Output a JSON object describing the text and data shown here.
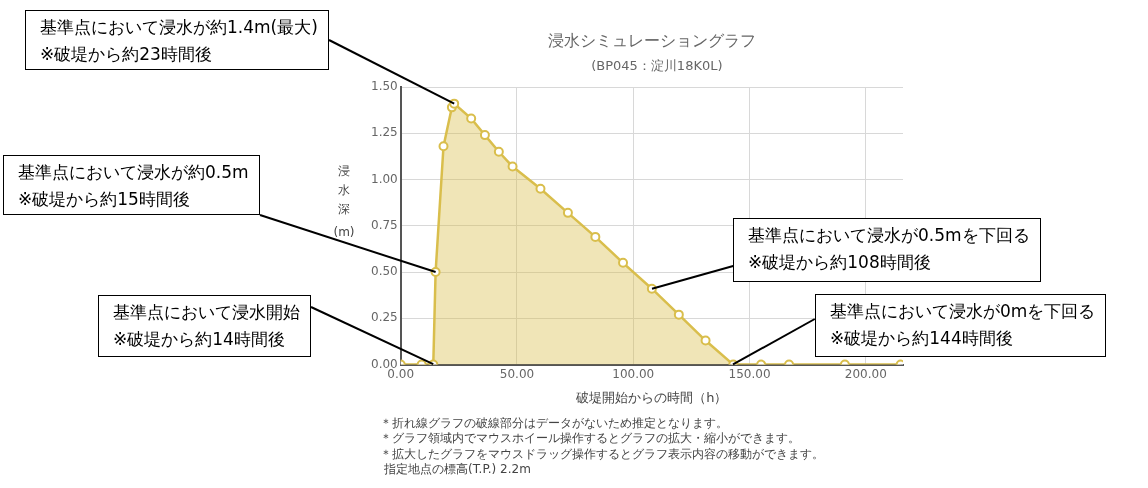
{
  "chart_data": {
    "type": "area",
    "title": "浸水シミュレーショングラフ",
    "subtitle": "(BP045：淀川18K0L)",
    "xlabel": "破堤開始からの時間（h）",
    "ylabel": "浸水深(m)",
    "x": [
      0,
      9,
      14,
      15,
      18.4,
      22,
      23,
      30.3,
      36.2,
      42.2,
      48.1,
      60.1,
      71.9,
      83.7,
      95.6,
      108,
      119.6,
      131.1,
      143,
      155,
      167,
      191,
      215
    ],
    "series": [
      {
        "color": "#d9be4c",
        "values": [
          0,
          0,
          0,
          0.5,
          1.18,
          1.39,
          1.41,
          1.33,
          1.24,
          1.15,
          1.07,
          0.95,
          0.82,
          0.69,
          0.55,
          0.41,
          0.27,
          0.13,
          0,
          0,
          0,
          0,
          0
        ]
      }
    ],
    "xlim": [
      0,
      216
    ],
    "xticks": [
      {
        "value": 0,
        "label": "0.00"
      },
      {
        "value": 50,
        "label": "50.00"
      },
      {
        "value": 100,
        "label": "100.00"
      },
      {
        "value": 150,
        "label": "150.00"
      },
      {
        "value": 200,
        "label": "200.00"
      }
    ],
    "ylim": [
      0,
      1.5
    ],
    "yticks": [
      {
        "value": 0,
        "label": "0.00"
      },
      {
        "value": 0.25,
        "label": "0.25"
      },
      {
        "value": 0.5,
        "label": "0.50"
      },
      {
        "value": 0.75,
        "label": "0.75"
      },
      {
        "value": 1,
        "label": "1.00"
      },
      {
        "value": 1.25,
        "label": "1.25"
      },
      {
        "value": 1.5,
        "label": "1.50"
      }
    ],
    "grid": true,
    "legend": false,
    "marker": "circle",
    "annotations": [
      {
        "text": "基準点において浸水が約1.4m(最大)\n※破堤から約23時間後",
        "x": 23,
        "y": 1.41
      },
      {
        "text": "基準点において浸水が約0.5m\n※破堤から約15時間後",
        "x": 15,
        "y": 0.5
      },
      {
        "text": "基準点において浸水が0.5mを下回る\n※破堤から約108時間後",
        "x": 108,
        "y": 0.41
      },
      {
        "text": "基準点において浸水開始\n※破堤から約14時間後",
        "x": 14,
        "y": 0
      },
      {
        "text": "基準点において浸水が0mを下回る\n※破堤から約144時間後",
        "x": 143,
        "y": 0
      },
      "＊折れ線グラフの破線部分はデータがないため推定となります。",
      "＊グラフ領域内でマウスホイール操作するとグラフの拡大・縮小ができます。",
      "＊拡大したグラフをマウスドラッグ操作するとグラフ表示内容の移動ができます。",
      "指定地点の標高(T.P.) 2.2m"
    ]
  }
}
